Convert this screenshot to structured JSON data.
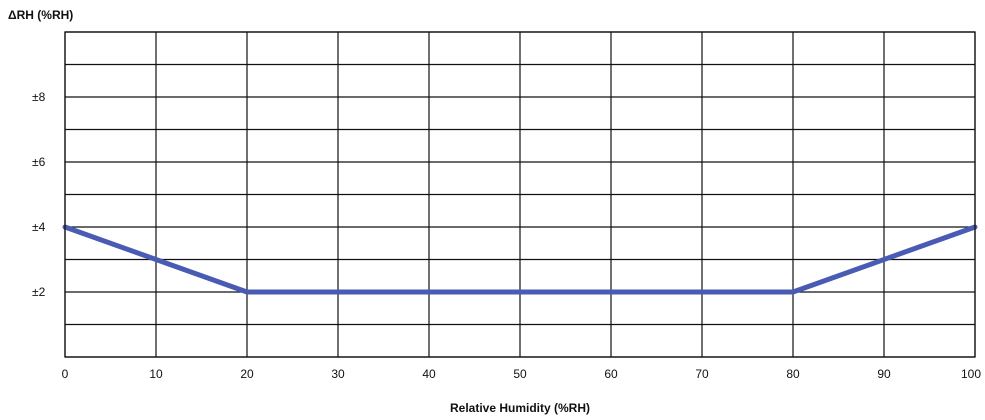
{
  "chart_data": {
    "type": "line",
    "title": "",
    "xlabel": "Relative Humidity (%RH)",
    "ylabel": "ΔRH (%RH)",
    "xlim": [
      0,
      100
    ],
    "ylim": [
      0,
      10
    ],
    "x_ticks": [
      0,
      10,
      20,
      30,
      40,
      50,
      60,
      70,
      80,
      90,
      100
    ],
    "x_tick_labels": [
      "0",
      "10",
      "20",
      "30",
      "40",
      "50",
      "60",
      "70",
      "80",
      "90",
      "100"
    ],
    "y_ticks": [
      2,
      4,
      6,
      8
    ],
    "y_tick_labels": [
      "±2",
      "±4",
      "±6",
      "±8"
    ],
    "grid": true,
    "legend": "none",
    "series": [
      {
        "x": [
          0,
          20,
          80,
          100
        ],
        "y": [
          4,
          2,
          2,
          4
        ],
        "color": "#4a5bb4"
      }
    ]
  }
}
